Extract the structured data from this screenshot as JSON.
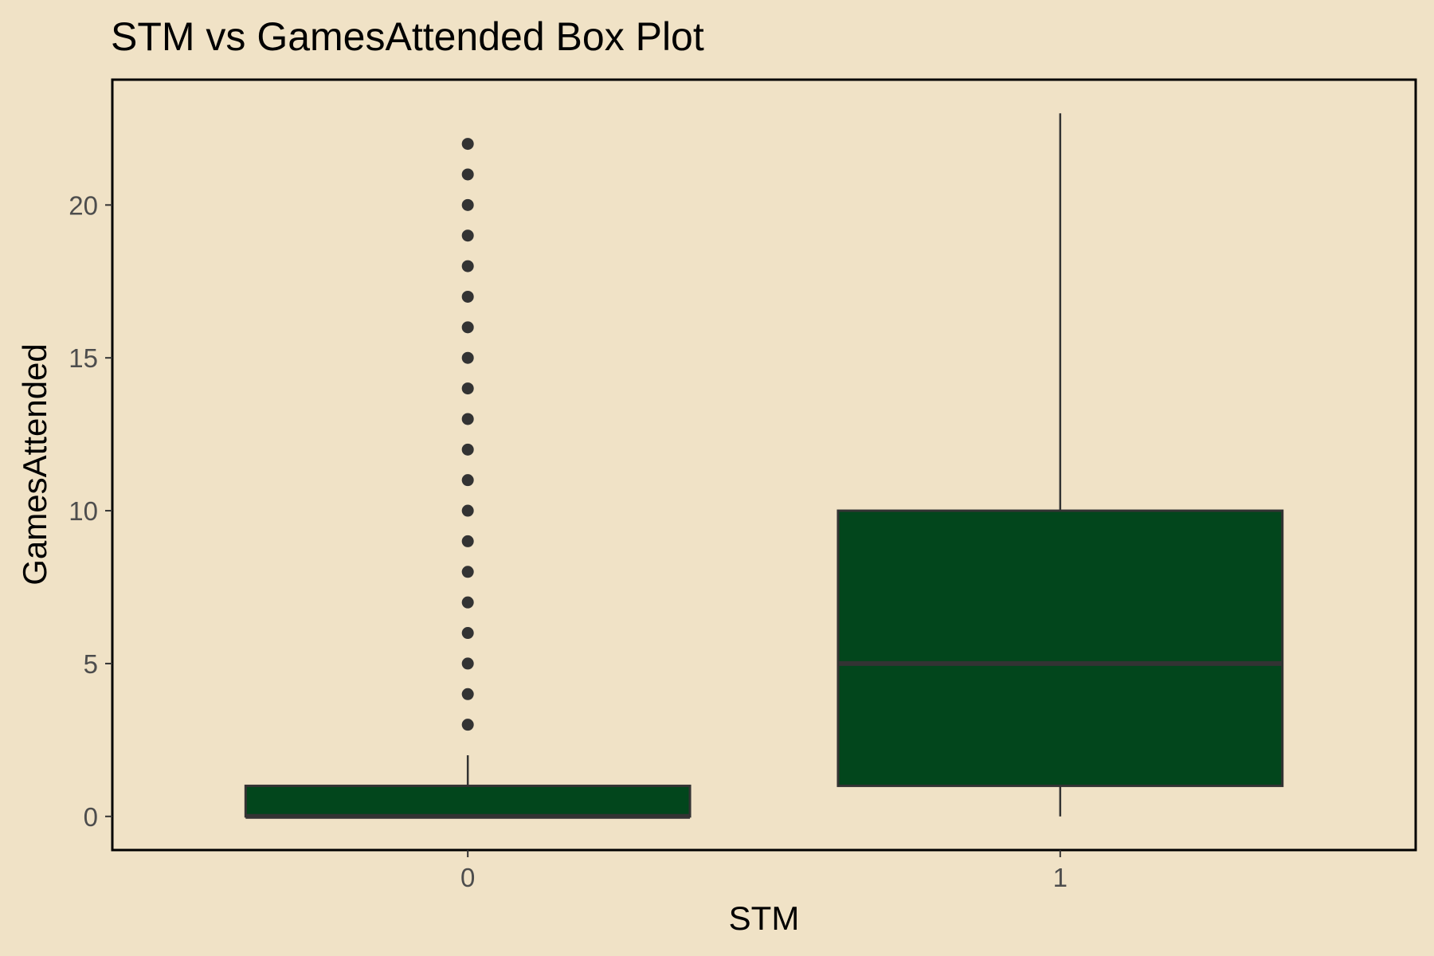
{
  "chart_data": {
    "type": "boxplot",
    "title": "STM vs GamesAttended Box Plot",
    "xlabel": "STM",
    "ylabel": "GamesAttended",
    "categories": [
      "0",
      "1"
    ],
    "yticks": [
      0,
      5,
      10,
      15,
      20
    ],
    "ytick_labels": [
      "0",
      "5",
      "10",
      "15",
      "20"
    ],
    "ylim": [
      -1.1,
      24.1
    ],
    "grid": false,
    "legend": "none",
    "boxes": [
      {
        "category": "0",
        "whisker_low": 0,
        "q1": 0,
        "median": 0,
        "q3": 1,
        "whisker_high": 2,
        "outliers": [
          3,
          4,
          5,
          6,
          7,
          8,
          9,
          10,
          11,
          12,
          13,
          14,
          15,
          16,
          17,
          18,
          19,
          20,
          21,
          22
        ]
      },
      {
        "category": "1",
        "whisker_low": 0,
        "q1": 1,
        "median": 5,
        "q3": 10,
        "whisker_high": 23,
        "outliers": []
      }
    ],
    "colors": {
      "background": "#F0E2C6",
      "box_fill": "#02461C",
      "box_line": "#333333",
      "outlier": "#333333",
      "frame": "#000000"
    }
  }
}
